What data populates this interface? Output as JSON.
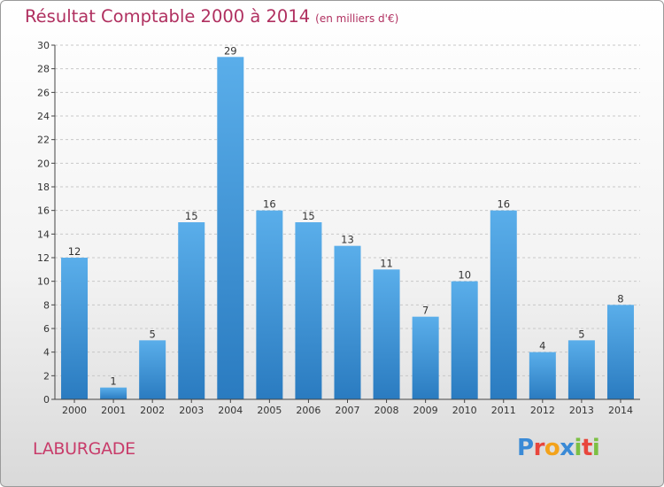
{
  "title": "Résultat Comptable 2000 à 2014",
  "subtitle": "(en milliers d'€)",
  "place": "LABURGADE",
  "logo": {
    "text": "Proxiti",
    "colors": [
      "#3a8ad6",
      "#e8463c",
      "#f3a21a",
      "#3a8ad6",
      "#7cc043",
      "#e8463c",
      "#7cc043"
    ]
  },
  "colors": {
    "title": "#b03060",
    "bar_light": "#5aaeea",
    "bar_dark": "#2a7bc0",
    "grid": "#c8c8c8"
  },
  "chart_data": {
    "type": "bar",
    "categories": [
      "2000",
      "2001",
      "2002",
      "2003",
      "2004",
      "2005",
      "2006",
      "2007",
      "2008",
      "2009",
      "2010",
      "2011",
      "2012",
      "2013",
      "2014"
    ],
    "values": [
      12,
      1,
      5,
      15,
      29,
      16,
      15,
      13,
      11,
      7,
      10,
      16,
      4,
      5,
      8
    ],
    "title": "Résultat Comptable 2000 à 2014",
    "xlabel": "",
    "ylabel": "",
    "ylim": [
      0,
      30
    ],
    "yticks": [
      0,
      2,
      4,
      6,
      8,
      10,
      12,
      14,
      16,
      18,
      20,
      22,
      24,
      26,
      28,
      30
    ],
    "grid": true,
    "data_labels": true
  }
}
